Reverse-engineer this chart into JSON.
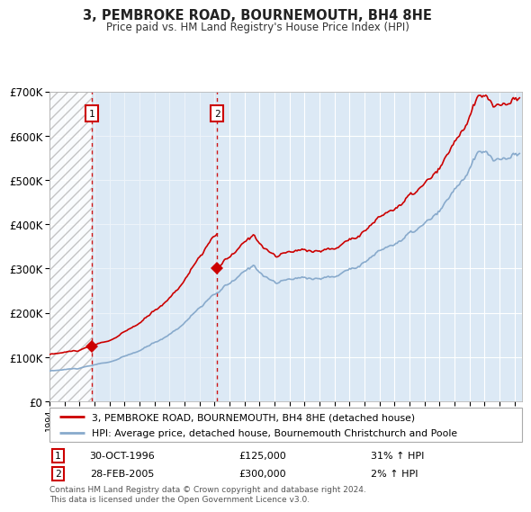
{
  "title": "3, PEMBROKE ROAD, BOURNEMOUTH, BH4 8HE",
  "subtitle": "Price paid vs. HM Land Registry's House Price Index (HPI)",
  "legend_line1": "3, PEMBROKE ROAD, BOURNEMOUTH, BH4 8HE (detached house)",
  "legend_line2": "HPI: Average price, detached house, Bournemouth Christchurch and Poole",
  "annotation1_date": "30-OCT-1996",
  "annotation1_price": "£125,000",
  "annotation1_hpi": "31% ↑ HPI",
  "annotation2_date": "28-FEB-2005",
  "annotation2_price": "£300,000",
  "annotation2_hpi": "2% ↑ HPI",
  "footnote": "Contains HM Land Registry data © Crown copyright and database right 2024.\nThis data is licensed under the Open Government Licence v3.0.",
  "xmin": 1994.0,
  "xmax": 2025.5,
  "ymin": 0,
  "ymax": 700000,
  "hatch_xmin": 1994.0,
  "hatch_xmax": 1996.83,
  "shade_xmin": 1996.83,
  "shade_xmax": 2005.16,
  "red_line_color": "#cc0000",
  "blue_line_color": "#88aacc",
  "background_color": "#dce9f5",
  "sale1_x": 1996.83,
  "sale1_y": 125000,
  "sale2_x": 2005.16,
  "sale2_y": 300000,
  "yticks": [
    0,
    100000,
    200000,
    300000,
    400000,
    500000,
    600000,
    700000
  ],
  "ytick_labels": [
    "£0",
    "£100K",
    "£200K",
    "£300K",
    "£400K",
    "£500K",
    "£600K",
    "£700K"
  ],
  "grid_color": "#ffffff",
  "vline1_x": 1996.83,
  "vline2_x": 2005.16
}
